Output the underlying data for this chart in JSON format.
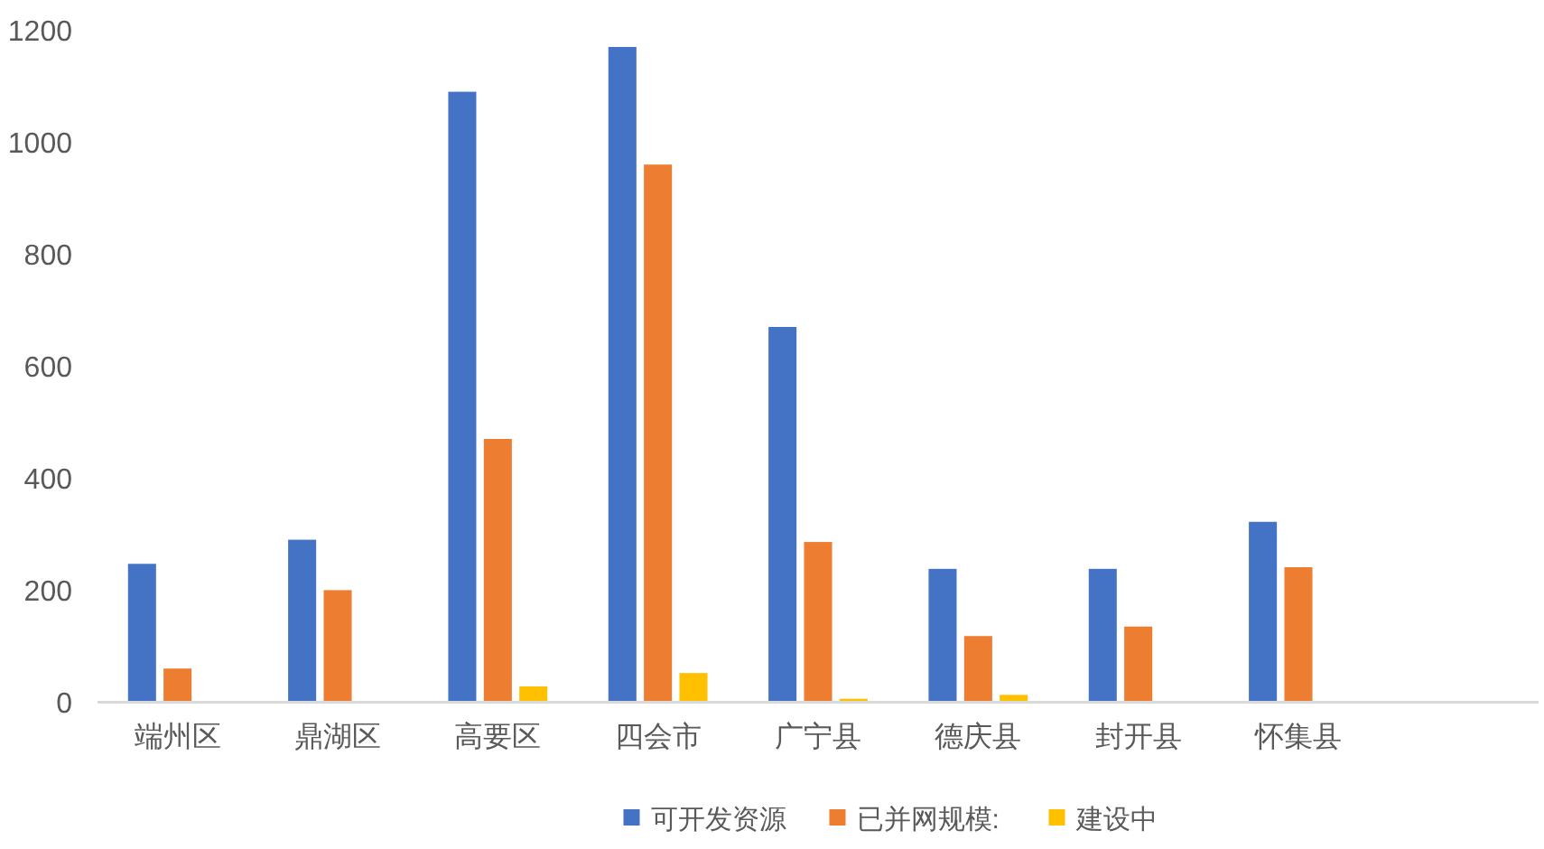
{
  "chart_data": {
    "type": "bar",
    "categories": [
      "端州区",
      "鼎湖区",
      "高要区",
      "四会市",
      "广宁县",
      "德庆县",
      "封开县",
      "怀集县",
      null
    ],
    "series": [
      {
        "name": "可开发资源",
        "color": "#4472c4",
        "values": [
          247,
          290,
          1090,
          1170,
          670,
          238,
          238,
          322,
          null
        ]
      },
      {
        "name": "已并网规模:",
        "color": "#ed7d31",
        "values": [
          60,
          200,
          470,
          960,
          286,
          118,
          135,
          241,
          null
        ]
      },
      {
        "name": "建设中",
        "color": "#ffc000",
        "values": [
          null,
          null,
          28,
          52,
          6,
          13,
          null,
          null,
          null
        ]
      }
    ],
    "ylim": [
      0,
      1200
    ],
    "yticks": [
      0,
      200,
      400,
      600,
      800,
      1000,
      1200
    ],
    "legend": "bottom"
  }
}
